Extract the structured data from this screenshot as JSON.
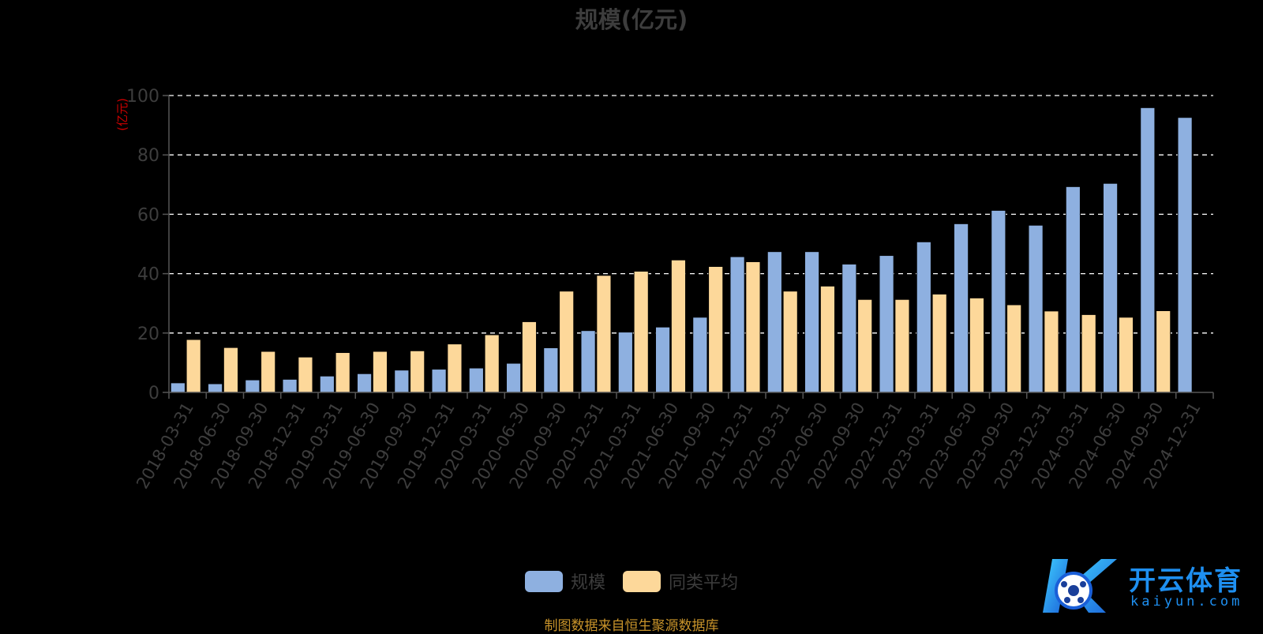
{
  "chart_data": {
    "type": "bar",
    "title": "规模(亿元)",
    "ylabel": "(亿元)",
    "xlabel": "",
    "ylim": [
      0,
      100
    ],
    "yticks": [
      0,
      20,
      40,
      60,
      80,
      100
    ],
    "grid": true,
    "legend_position": "bottom-center",
    "categories": [
      "2018-03-31",
      "2018-06-30",
      "2018-09-30",
      "2018-12-31",
      "2019-03-31",
      "2019-06-30",
      "2019-09-30",
      "2019-12-31",
      "2020-03-31",
      "2020-06-30",
      "2020-09-30",
      "2020-12-31",
      "2021-03-31",
      "2021-06-30",
      "2021-09-30",
      "2021-12-31",
      "2022-03-31",
      "2022-06-30",
      "2022-09-30",
      "2022-12-31",
      "2023-03-31",
      "2023-06-30",
      "2023-09-30",
      "2023-12-31",
      "2024-03-31",
      "2024-06-30",
      "2024-09-30",
      "2024-12-31"
    ],
    "series": [
      {
        "name": "规模",
        "color": "#8eb0e0",
        "values": [
          3.2,
          2.9,
          4.2,
          4.4,
          5.5,
          6.3,
          7.5,
          7.8,
          8.2,
          9.8,
          15.0,
          20.8,
          20.3,
          22.0,
          25.3,
          45.7,
          47.4,
          47.4,
          43.2,
          46.1,
          50.7,
          56.8,
          61.3,
          56.3,
          69.3,
          70.4,
          95.9,
          92.6
        ]
      },
      {
        "name": "同类平均",
        "color": "#fdd89a",
        "values": [
          17.8,
          15.1,
          13.8,
          11.9,
          13.4,
          13.8,
          14.0,
          16.3,
          19.4,
          23.8,
          34.1,
          39.4,
          40.8,
          44.6,
          42.4,
          44.0,
          34.1,
          35.8,
          31.3,
          31.3,
          33.1,
          31.8,
          29.5,
          27.4,
          26.2,
          25.3,
          27.5,
          null
        ]
      }
    ]
  },
  "legend": {
    "items": [
      "规模",
      "同类平均"
    ],
    "colors": [
      "#8eb0e0",
      "#fdd89a"
    ]
  },
  "source_text": "制图数据来自恒生聚源数据库",
  "watermark": {
    "brand": "开云体育",
    "domain": "kaiyun.com"
  }
}
